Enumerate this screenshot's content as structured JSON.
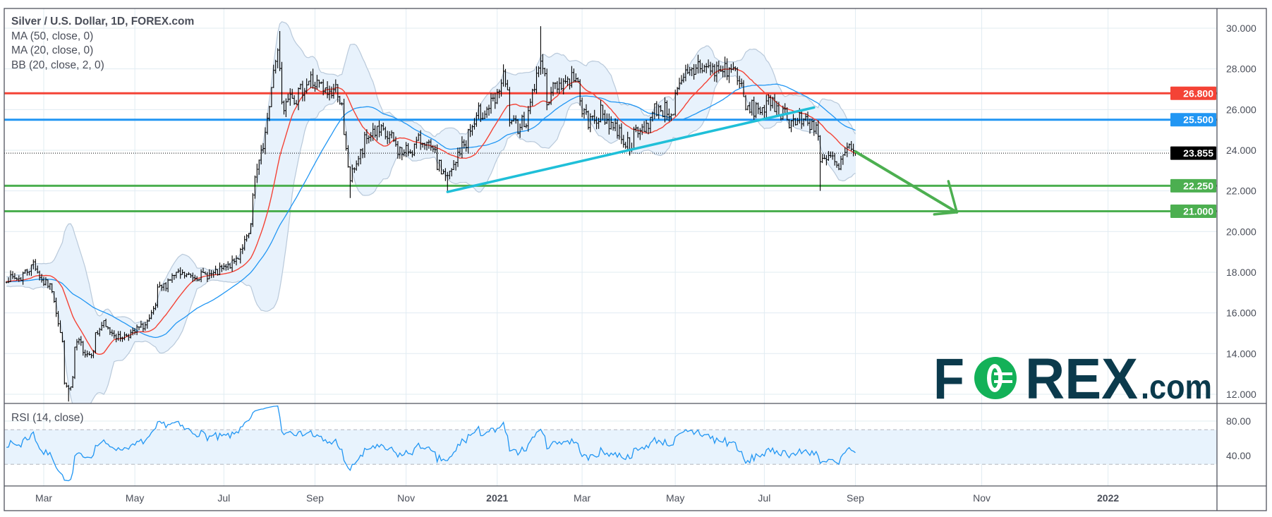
{
  "legend": {
    "title": "Silver / U.S. Dollar, 1D, FOREX.com",
    "indicators": [
      "MA (50, close, 0)",
      "MA (20, close, 0)",
      "BB (20, close, 2, 0)"
    ]
  },
  "rsi_label": "RSI (14, close)",
  "logo": {
    "text": "FOREX.com",
    "dark": "#0b3a4c",
    "green": "#13b158"
  },
  "colors": {
    "ma50": "#2196f3",
    "ma20": "#f44336",
    "bb_fill": "#e8f2fc",
    "bb_edge": "#b9c9da",
    "rsi": "#2196f3",
    "trendline": "#1fbfd8",
    "arrow": "#4caf50",
    "bars": "#000000"
  },
  "chart_data": {
    "type": "ohlc",
    "symbol": "XAGUSD",
    "timeframe": "1D",
    "ylim": [
      11.55,
      30.97
    ],
    "grid": true,
    "price_axis": {
      "ticks": [
        "30.000",
        "28.000",
        "26.000",
        "24.000",
        "22.000",
        "20.000",
        "18.000",
        "16.000",
        "14.000",
        "12.000"
      ]
    },
    "time_axis": {
      "ticks": [
        {
          "label": "Mar",
          "date": "2020-03-02"
        },
        {
          "label": "May",
          "date": "2020-05-01"
        },
        {
          "label": "Jul",
          "date": "2020-07-01"
        },
        {
          "label": "Sep",
          "date": "2020-09-01"
        },
        {
          "label": "Nov",
          "date": "2020-11-02"
        },
        {
          "label": "2021",
          "date": "2021-01-01"
        },
        {
          "label": "Mar",
          "date": "2021-03-01"
        },
        {
          "label": "May",
          "date": "2021-05-03"
        },
        {
          "label": "Jul",
          "date": "2021-07-01"
        },
        {
          "label": "Sep",
          "date": "2021-09-01"
        },
        {
          "label": "Nov",
          "date": "2021-11-01"
        },
        {
          "label": "2022",
          "date": "2022-01-01"
        }
      ]
    },
    "close_path": [
      [
        "2020-02-05",
        17.7
      ],
      [
        "2020-02-14",
        17.7
      ],
      [
        "2020-02-24",
        18.5
      ],
      [
        "2020-02-28",
        17.6
      ],
      [
        "2020-03-04",
        17.4
      ],
      [
        "2020-03-09",
        16.8
      ],
      [
        "2020-03-12",
        15.0
      ],
      [
        "2020-03-17",
        12.2
      ],
      [
        "2020-03-19",
        12.3
      ],
      [
        "2020-03-24",
        14.5
      ],
      [
        "2020-04-01",
        14.0
      ],
      [
        "2020-04-09",
        15.4
      ],
      [
        "2020-04-21",
        14.8
      ],
      [
        "2020-04-30",
        15.0
      ],
      [
        "2020-05-12",
        15.6
      ],
      [
        "2020-05-18",
        17.1
      ],
      [
        "2020-05-29",
        17.9
      ],
      [
        "2020-06-10",
        17.8
      ],
      [
        "2020-06-24",
        17.9
      ],
      [
        "2020-07-07",
        18.4
      ],
      [
        "2020-07-14",
        19.3
      ],
      [
        "2020-07-20",
        20.3
      ],
      [
        "2020-07-22",
        22.6
      ],
      [
        "2020-07-28",
        24.3
      ],
      [
        "2020-08-06",
        28.9
      ],
      [
        "2020-08-11",
        26.0
      ],
      [
        "2020-08-14",
        27.2
      ],
      [
        "2020-08-19",
        26.6
      ],
      [
        "2020-08-28",
        27.5
      ],
      [
        "2020-09-08",
        26.8
      ],
      [
        "2020-09-16",
        27.0
      ],
      [
        "2020-09-21",
        24.5
      ],
      [
        "2020-09-24",
        22.6
      ],
      [
        "2020-09-30",
        23.6
      ],
      [
        "2020-10-09",
        25.0
      ],
      [
        "2020-10-21",
        24.6
      ],
      [
        "2020-10-30",
        23.8
      ],
      [
        "2020-11-09",
        24.3
      ],
      [
        "2020-11-13",
        24.6
      ],
      [
        "2020-11-25",
        23.0
      ],
      [
        "2020-11-30",
        22.6
      ],
      [
        "2020-12-08",
        24.0
      ],
      [
        "2020-12-21",
        25.8
      ],
      [
        "2020-12-31",
        26.3
      ],
      [
        "2021-01-06",
        27.5
      ],
      [
        "2021-01-12",
        25.1
      ],
      [
        "2021-01-22",
        25.6
      ],
      [
        "2021-02-01",
        28.8
      ],
      [
        "2021-02-04",
        26.6
      ],
      [
        "2021-02-12",
        27.3
      ],
      [
        "2021-02-23",
        27.6
      ],
      [
        "2021-03-04",
        25.3
      ],
      [
        "2021-03-12",
        25.8
      ],
      [
        "2021-03-23",
        25.1
      ],
      [
        "2021-03-31",
        24.3
      ],
      [
        "2021-04-12",
        25.2
      ],
      [
        "2021-04-20",
        26.1
      ],
      [
        "2021-04-30",
        25.9
      ],
      [
        "2021-05-07",
        27.4
      ],
      [
        "2021-05-18",
        28.2
      ],
      [
        "2021-05-28",
        27.9
      ],
      [
        "2021-06-07",
        28.0
      ],
      [
        "2021-06-14",
        27.8
      ],
      [
        "2021-06-18",
        26.0
      ],
      [
        "2021-06-30",
        26.1
      ],
      [
        "2021-07-09",
        26.2
      ],
      [
        "2021-07-21",
        25.4
      ],
      [
        "2021-07-30",
        25.5
      ],
      [
        "2021-08-05",
        25.2
      ],
      [
        "2021-08-09",
        23.3
      ],
      [
        "2021-08-16",
        23.7
      ],
      [
        "2021-08-20",
        23.0
      ],
      [
        "2021-08-27",
        24.0
      ],
      [
        "2021-09-01",
        23.855
      ]
    ],
    "extremes": [
      {
        "date": "2020-03-18",
        "low": 11.64
      },
      {
        "date": "2020-08-07",
        "high": 29.86
      },
      {
        "date": "2020-09-24",
        "low": 21.65
      },
      {
        "date": "2020-11-30",
        "low": 21.9
      },
      {
        "date": "2021-02-01",
        "high": 30.1
      },
      {
        "date": "2021-08-09",
        "low": 22.0
      }
    ],
    "last_price": {
      "value": 23.855,
      "label": "23.855"
    },
    "horizontal_levels": [
      {
        "value": 26.8,
        "label": "26.800",
        "color": "#f44336"
      },
      {
        "value": 25.5,
        "label": "25.500",
        "color": "#2196f3"
      },
      {
        "value": 22.25,
        "label": "22.250",
        "color": "#4caf50"
      },
      {
        "value": 21.0,
        "label": "21.000",
        "color": "#4caf50"
      }
    ],
    "trendline": {
      "from": [
        "2020-11-30",
        21.95
      ],
      "to": [
        "2021-08-04",
        26.1
      ]
    },
    "forecast_arrow": {
      "from": [
        "2021-09-01",
        23.93
      ],
      "to": [
        "2021-10-20",
        20.95
      ]
    },
    "indicators": {
      "ma": [
        {
          "length": 50
        },
        {
          "length": 20
        }
      ],
      "bb": {
        "length": 20,
        "mult": 2
      },
      "rsi": {
        "length": 14,
        "ylim": [
          5,
          99
        ],
        "band": [
          30,
          70
        ],
        "ticks": [
          "80.00",
          "40.00"
        ]
      }
    }
  }
}
